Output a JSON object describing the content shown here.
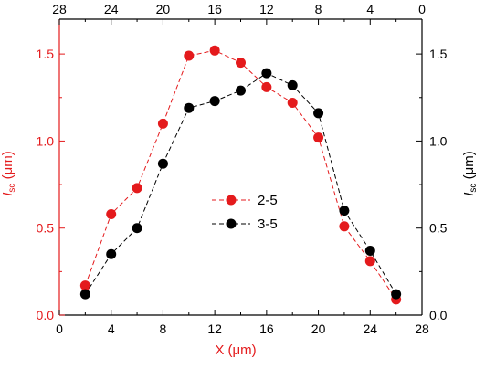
{
  "chart_data": {
    "type": "scatter",
    "title": "",
    "xlabel": "X (μm)",
    "ylabel_left": {
      "main": "I",
      "sub": "sc",
      "unit": " (μm)"
    },
    "ylabel_right": {
      "main": "I",
      "sub": "sc",
      "unit": " (μm)"
    },
    "xlim": [
      0,
      28
    ],
    "ylim": [
      0,
      1.7
    ],
    "x_ticks": [
      0,
      4,
      8,
      12,
      16,
      20,
      24,
      28
    ],
    "x_top_ticks_labels": [
      "28",
      "24",
      "20",
      "16",
      "12",
      "8",
      "4",
      "0"
    ],
    "y_ticks": [
      "0.0",
      "0.5",
      "1.0",
      "1.5"
    ],
    "y_tick_values": [
      0,
      0.5,
      1.0,
      1.5
    ],
    "grid": false,
    "legend_position": "center",
    "series": [
      {
        "name": "2-5",
        "color": "#e41a1c",
        "axis": "left",
        "line_style": "dashed",
        "x": [
          2,
          4,
          6,
          8,
          10,
          12,
          14,
          16,
          18,
          20,
          22,
          24,
          26
        ],
        "y": [
          0.17,
          0.58,
          0.73,
          1.1,
          1.49,
          1.52,
          1.45,
          1.31,
          1.22,
          1.02,
          0.51,
          0.31,
          0.09
        ]
      },
      {
        "name": "3-5",
        "color": "#000000",
        "axis": "right",
        "line_style": "dashed",
        "x": [
          2,
          4,
          6,
          8,
          10,
          12,
          14,
          16,
          18,
          20,
          22,
          24,
          26
        ],
        "y": [
          0.12,
          0.35,
          0.5,
          0.87,
          1.19,
          1.23,
          1.29,
          1.39,
          1.32,
          1.16,
          0.6,
          0.37,
          0.12
        ]
      }
    ]
  },
  "colors": {
    "left_axis": "#e41a1c",
    "right_axis": "#000000",
    "frame": "#000000"
  }
}
